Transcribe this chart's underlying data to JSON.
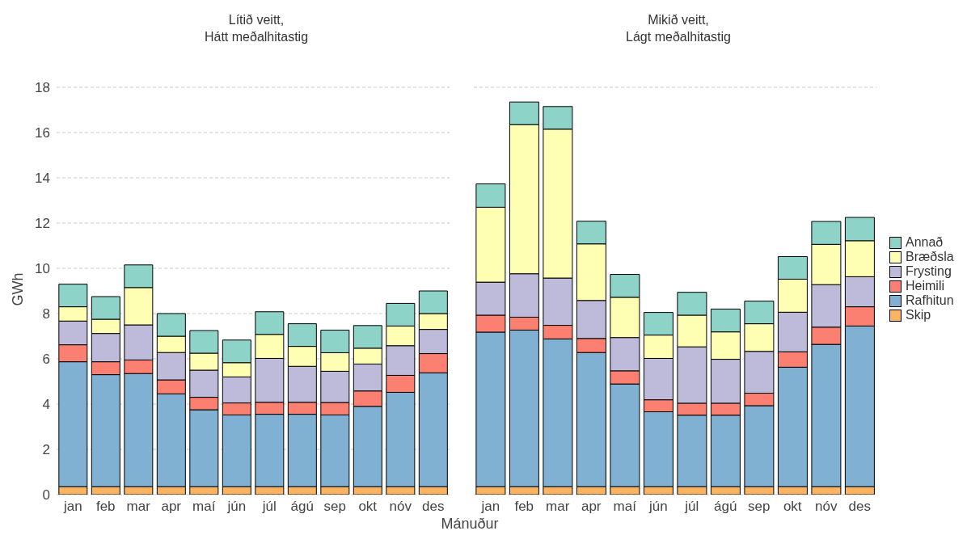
{
  "chart_data": [
    {
      "type": "bar",
      "title": "Lítið veitt,\nHátt meðalhitastig",
      "xlabel": "Mánuður",
      "ylabel": "GWh",
      "stacked": true,
      "categories": [
        "jan",
        "feb",
        "mar",
        "apr",
        "maí",
        "jún",
        "júl",
        "ágú",
        "sep",
        "okt",
        "nóv",
        "des"
      ],
      "ylim": [
        0,
        18
      ],
      "yticks": [
        0,
        2,
        4,
        6,
        8,
        10,
        12,
        14,
        16,
        18
      ],
      "grid": "y",
      "legend": false,
      "series": [
        {
          "color": "#fdb462",
          "values": [
            0.35,
            0.35,
            0.35,
            0.35,
            0.35,
            0.35,
            0.35,
            0.35,
            0.35,
            0.35,
            0.35,
            0.35
          ]
        },
        {
          "color": "#80b1d3",
          "values": [
            5.52,
            4.95,
            5.0,
            4.1,
            3.4,
            3.17,
            3.2,
            3.2,
            3.17,
            3.55,
            4.17,
            5.03
          ]
        },
        {
          "color": "#fb8072",
          "values": [
            0.75,
            0.57,
            0.6,
            0.62,
            0.55,
            0.53,
            0.53,
            0.53,
            0.55,
            0.68,
            0.75,
            0.85
          ]
        },
        {
          "color": "#bebada",
          "values": [
            1.05,
            1.25,
            1.55,
            1.21,
            1.2,
            1.15,
            1.94,
            1.59,
            1.38,
            1.19,
            1.31,
            1.07
          ]
        },
        {
          "color": "#ffffb3",
          "values": [
            0.63,
            0.63,
            1.65,
            0.72,
            0.75,
            0.63,
            1.06,
            0.88,
            0.82,
            0.7,
            0.87,
            0.7
          ]
        },
        {
          "color": "#8dd3c7",
          "values": [
            1.0,
            1.0,
            1.0,
            1.0,
            1.0,
            1.0,
            1.0,
            1.0,
            1.0,
            1.0,
            1.0,
            1.0
          ]
        }
      ]
    },
    {
      "type": "bar",
      "title": "Mikið veitt,\nLágt meðalhitastig",
      "stacked": true,
      "categories": [
        "jan",
        "feb",
        "mar",
        "apr",
        "maí",
        "jún",
        "júl",
        "ágú",
        "sep",
        "okt",
        "nóv",
        "des"
      ],
      "ylim": [
        0,
        18
      ],
      "yticks": [
        0,
        2,
        4,
        6,
        8,
        10,
        12,
        14,
        16,
        18
      ],
      "tick_labels": "x",
      "grid": "y",
      "legend": "right",
      "series": [
        {
          "name": "Skip",
          "color": "#fdb462",
          "values": [
            0.35,
            0.35,
            0.35,
            0.35,
            0.35,
            0.35,
            0.35,
            0.35,
            0.35,
            0.35,
            0.35,
            0.35
          ]
        },
        {
          "name": "Rafhitun",
          "color": "#80b1d3",
          "values": [
            6.83,
            6.92,
            6.53,
            5.93,
            4.54,
            3.31,
            3.16,
            3.16,
            3.58,
            5.28,
            6.29,
            7.1
          ]
        },
        {
          "name": "Heimili",
          "color": "#fb8072",
          "values": [
            0.75,
            0.57,
            0.6,
            0.62,
            0.58,
            0.53,
            0.53,
            0.53,
            0.55,
            0.68,
            0.76,
            0.85
          ]
        },
        {
          "name": "Frysting",
          "color": "#bebada",
          "values": [
            1.46,
            1.92,
            2.09,
            1.68,
            1.47,
            1.83,
            2.49,
            1.94,
            1.85,
            1.75,
            1.88,
            1.33
          ]
        },
        {
          "name": "Bræðsla",
          "color": "#ffffb3",
          "values": [
            3.31,
            6.59,
            6.58,
            2.5,
            1.78,
            1.03,
            1.4,
            1.21,
            1.22,
            1.46,
            1.78,
            1.59
          ]
        },
        {
          "name": "Annað",
          "color": "#8dd3c7",
          "values": [
            1.03,
            1.0,
            1.0,
            1.0,
            1.01,
            1.0,
            1.01,
            1.01,
            1.0,
            1.0,
            1.01,
            1.03
          ]
        }
      ]
    }
  ]
}
